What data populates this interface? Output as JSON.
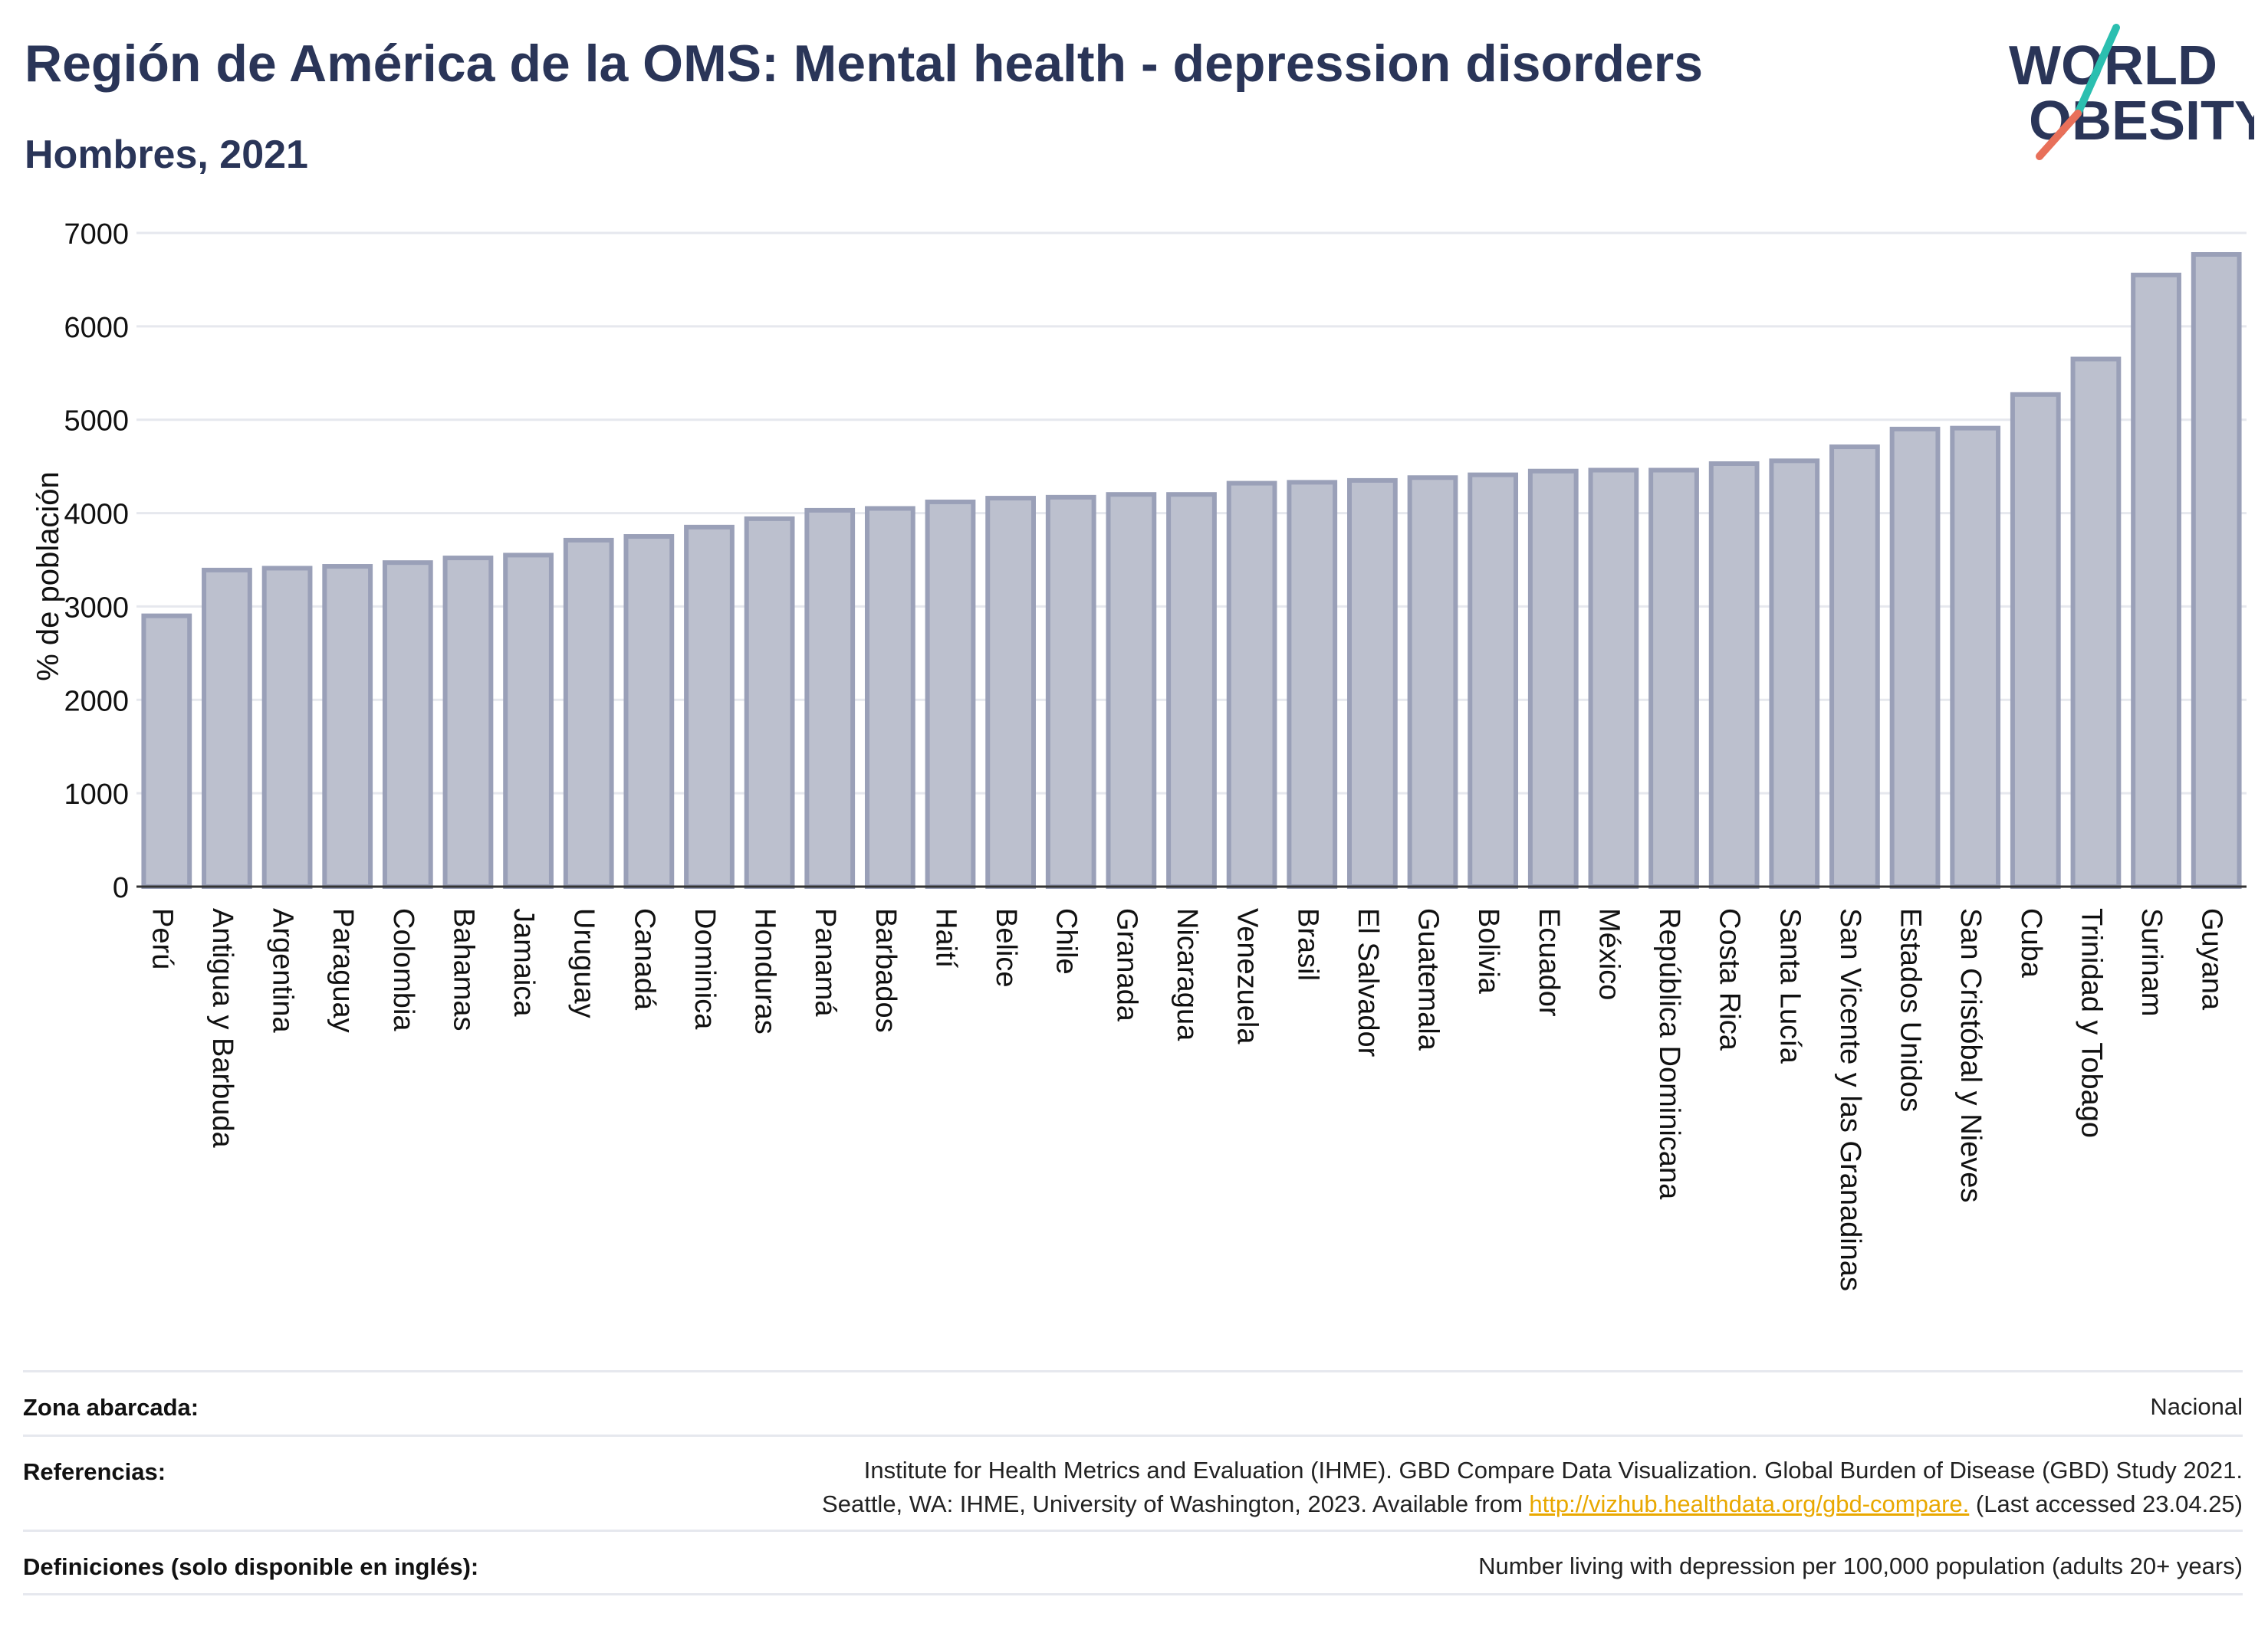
{
  "header": {
    "title": "Región de América de la OMS: Mental health - depression disorders",
    "subtitle": "Hombres, 2021"
  },
  "logo": {
    "line1": "WORLD",
    "line2": "OBESITY"
  },
  "colors": {
    "title": "#2a3558",
    "bar_fill": "#bcc0ce",
    "bar_stroke": "#9aa0b8",
    "grid": "#e6e8ee",
    "link": "#e9a800",
    "logo_teal": "#2bbfb0",
    "logo_coral": "#e8705a"
  },
  "chart_data": {
    "type": "bar",
    "title": "Región de América de la OMS: Mental health - depression disorders",
    "subtitle": "Hombres, 2021",
    "xlabel": "",
    "ylabel": "% de población",
    "ylim": [
      0,
      7000
    ],
    "yticks": [
      0,
      1000,
      2000,
      3000,
      4000,
      5000,
      6000,
      7000
    ],
    "grid": true,
    "categories": [
      "Perú",
      "Antigua y Barbuda",
      "Argentina",
      "Paraguay",
      "Colombia",
      "Bahamas",
      "Jamaica",
      "Uruguay",
      "Canadá",
      "Dominica",
      "Honduras",
      "Panamá",
      "Barbados",
      "Haití",
      "Belice",
      "Chile",
      "Granada",
      "Nicaragua",
      "Venezuela",
      "Brasil",
      "El Salvador",
      "Guatemala",
      "Bolivia",
      "Ecuador",
      "México",
      "República Dominicana",
      "Costa Rica",
      "Santa Lucía",
      "San Vicente y las Granadinas",
      "Estados Unidos",
      "San Cristóbal y Nieves",
      "Cuba",
      "Trinidad y Tobago",
      "Surinam",
      "Guyana"
    ],
    "values": [
      2900,
      3390,
      3410,
      3430,
      3470,
      3520,
      3550,
      3710,
      3750,
      3850,
      3940,
      4030,
      4050,
      4120,
      4160,
      4170,
      4200,
      4200,
      4320,
      4330,
      4350,
      4380,
      4410,
      4450,
      4460,
      4460,
      4530,
      4560,
      4710,
      4900,
      4910,
      5270,
      5650,
      6550,
      6770
    ]
  },
  "footer": {
    "rows": [
      {
        "label": "Zona abarcada:",
        "value": "Nacional"
      },
      {
        "label": "Referencias:",
        "value_line1": "Institute for Health Metrics and Evaluation (IHME). GBD Compare Data Visualization. Global Burden of Disease (GBD) Study 2021.",
        "value_line2_pre": "Seattle, WA: IHME, University of Washington, 2023. Available from ",
        "link": "http://vizhub.healthdata.org/gbd-compare.",
        "value_line2_post": " (Last accessed 23.04.25)"
      },
      {
        "label": "Definiciones (solo disponible en inglés):",
        "value": "Number living with depression per 100,000 population (adults 20+ years)"
      }
    ]
  }
}
